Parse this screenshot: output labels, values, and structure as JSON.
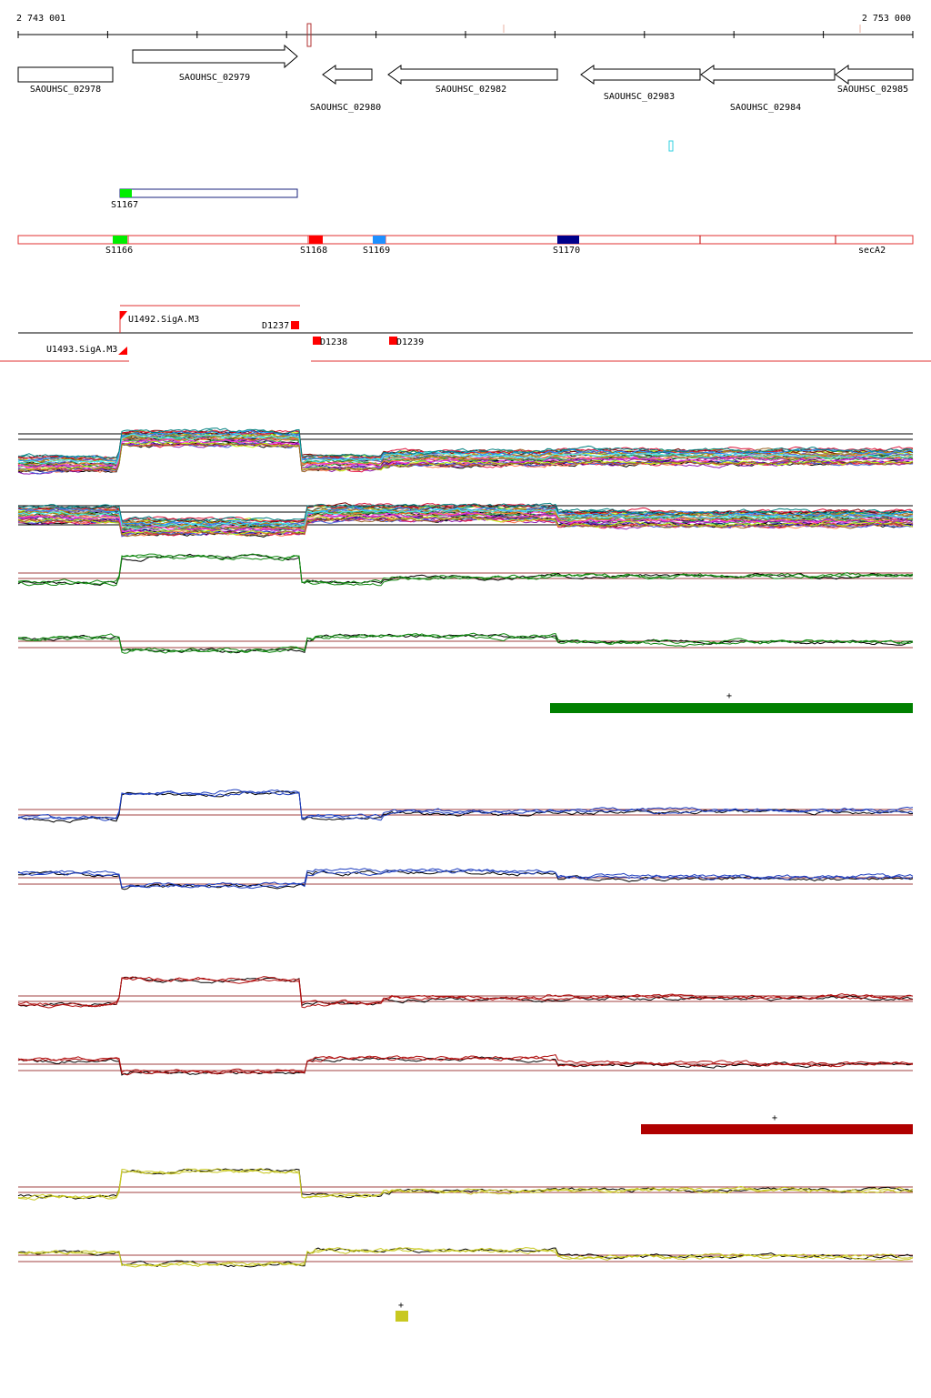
{
  "coordinates": {
    "start": "2 743 001",
    "end": "2 753 000"
  },
  "genes": [
    {
      "label": "SAOUHSC_02978",
      "strand": "+"
    },
    {
      "label": "SAOUHSC_02979",
      "strand": "+"
    },
    {
      "label": "SAOUHSC_02980",
      "strand": "-"
    },
    {
      "label": "SAOUHSC_02982",
      "strand": "-"
    },
    {
      "label": "SAOUHSC_02983",
      "strand": "-"
    },
    {
      "label": "SAOUHSC_02984",
      "strand": "-"
    },
    {
      "label": "SAOUHSC_02985",
      "strand": "-"
    }
  ],
  "segments": {
    "upper": [
      {
        "label": "S1167",
        "color": "#00ee00"
      }
    ],
    "lower": [
      {
        "label": "S1166",
        "color": "#00ee00"
      },
      {
        "label": "S1168",
        "color": "#ff0000"
      },
      {
        "label": "S1169",
        "color": "#1e90ff"
      },
      {
        "label": "S1170",
        "color": "#00008b"
      },
      {
        "label": "secA2",
        "color": ""
      }
    ]
  },
  "promoters": [
    {
      "label": "U1492.SigA.M3"
    },
    {
      "label": "U1493.SigA.M3"
    },
    {
      "label": "D1237"
    },
    {
      "label": "D1238"
    },
    {
      "label": "D1239"
    }
  ],
  "panels": [
    {
      "name": "all-conditions",
      "color": "multi",
      "marker": null
    },
    {
      "name": "green",
      "color": "#118811",
      "marker": {
        "symbol": "+",
        "color": "#008000"
      }
    },
    {
      "name": "blue",
      "color": "#1f3fbf",
      "marker": null
    },
    {
      "name": "red",
      "color": "#b01010",
      "marker": {
        "symbol": "+",
        "color": "#b00000"
      }
    },
    {
      "name": "yellow",
      "color": "#c8c820",
      "marker": {
        "symbol": "+",
        "color": "#c8c820"
      }
    }
  ]
}
